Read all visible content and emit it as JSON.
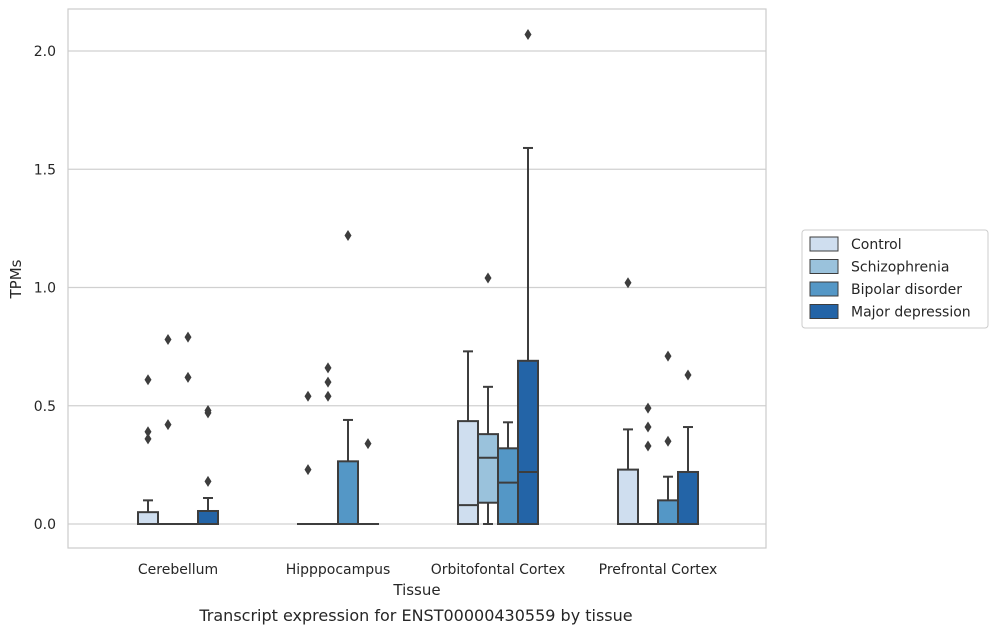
{
  "caption": "Transcript expression for ENST00000430559 by tissue",
  "chart_data": {
    "type": "box",
    "xlabel": "Tissue",
    "ylabel": "TPMs",
    "ylim": [
      -0.1,
      2.18
    ],
    "yticks": [
      0.0,
      0.5,
      1.0,
      1.5,
      2.0
    ],
    "ytick_labels": [
      "0.0",
      "0.5",
      "1.0",
      "1.5",
      "2.0"
    ],
    "grid": "horizontal",
    "legend_position": "right",
    "categories": [
      "Cerebellum",
      "Hipppocampus",
      "Orbitofontal Cortex",
      "Prefrontal Cortex"
    ],
    "series": [
      {
        "name": "Control",
        "color": "#cfdeef"
      },
      {
        "name": "Schizophrenia",
        "color": "#9ac2dc"
      },
      {
        "name": "Bipolar disorder",
        "color": "#5497c6"
      },
      {
        "name": "Major depression",
        "color": "#2364a7"
      }
    ],
    "boxes": [
      [
        {
          "q1": 0.0,
          "median": 0.0,
          "q3": 0.05,
          "whisker_low": 0.0,
          "whisker_high": 0.1,
          "outliers": [
            0.36,
            0.39,
            0.61
          ]
        },
        {
          "q1": 0.0,
          "median": 0.0,
          "q3": 0.0,
          "whisker_low": 0.0,
          "whisker_high": 0.0,
          "outliers": [
            0.42,
            0.78
          ]
        },
        {
          "q1": 0.0,
          "median": 0.0,
          "q3": 0.0,
          "whisker_low": 0.0,
          "whisker_high": 0.0,
          "outliers": [
            0.62,
            0.79
          ]
        },
        {
          "q1": 0.0,
          "median": 0.0,
          "q3": 0.055,
          "whisker_low": 0.0,
          "whisker_high": 0.11,
          "outliers": [
            0.18,
            0.47,
            0.48
          ]
        }
      ],
      [
        {
          "q1": 0.0,
          "median": 0.0,
          "q3": 0.0,
          "whisker_low": 0.0,
          "whisker_high": 0.0,
          "outliers": [
            0.23,
            0.54
          ]
        },
        {
          "q1": 0.0,
          "median": 0.0,
          "q3": 0.0,
          "whisker_low": 0.0,
          "whisker_high": 0.0,
          "outliers": [
            0.54,
            0.6,
            0.66
          ]
        },
        {
          "q1": 0.0,
          "median": 0.0,
          "q3": 0.265,
          "whisker_low": 0.0,
          "whisker_high": 0.44,
          "outliers": [
            1.22
          ]
        },
        {
          "q1": 0.0,
          "median": 0.0,
          "q3": 0.0,
          "whisker_low": 0.0,
          "whisker_high": 0.0,
          "outliers": [
            0.34
          ]
        }
      ],
      [
        {
          "q1": 0.0,
          "median": 0.08,
          "q3": 0.435,
          "whisker_low": 0.0,
          "whisker_high": 0.73,
          "outliers": []
        },
        {
          "q1": 0.09,
          "median": 0.28,
          "q3": 0.38,
          "whisker_low": 0.0,
          "whisker_high": 0.58,
          "outliers": [
            1.04
          ]
        },
        {
          "q1": 0.0,
          "median": 0.175,
          "q3": 0.32,
          "whisker_low": 0.0,
          "whisker_high": 0.43,
          "outliers": []
        },
        {
          "q1": 0.0,
          "median": 0.22,
          "q3": 0.69,
          "whisker_low": 0.0,
          "whisker_high": 1.59,
          "outliers": [
            2.07
          ]
        }
      ],
      [
        {
          "q1": 0.0,
          "median": 0.0,
          "q3": 0.23,
          "whisker_low": 0.0,
          "whisker_high": 0.4,
          "outliers": [
            1.02
          ]
        },
        {
          "q1": 0.0,
          "median": 0.0,
          "q3": 0.0,
          "whisker_low": 0.0,
          "whisker_high": 0.0,
          "outliers": [
            0.33,
            0.41,
            0.49
          ]
        },
        {
          "q1": 0.0,
          "median": 0.0,
          "q3": 0.1,
          "whisker_low": 0.0,
          "whisker_high": 0.2,
          "outliers": [
            0.35,
            0.71
          ]
        },
        {
          "q1": 0.0,
          "median": 0.0,
          "q3": 0.22,
          "whisker_low": 0.0,
          "whisker_high": 0.41,
          "outliers": [
            0.63
          ]
        }
      ]
    ]
  }
}
